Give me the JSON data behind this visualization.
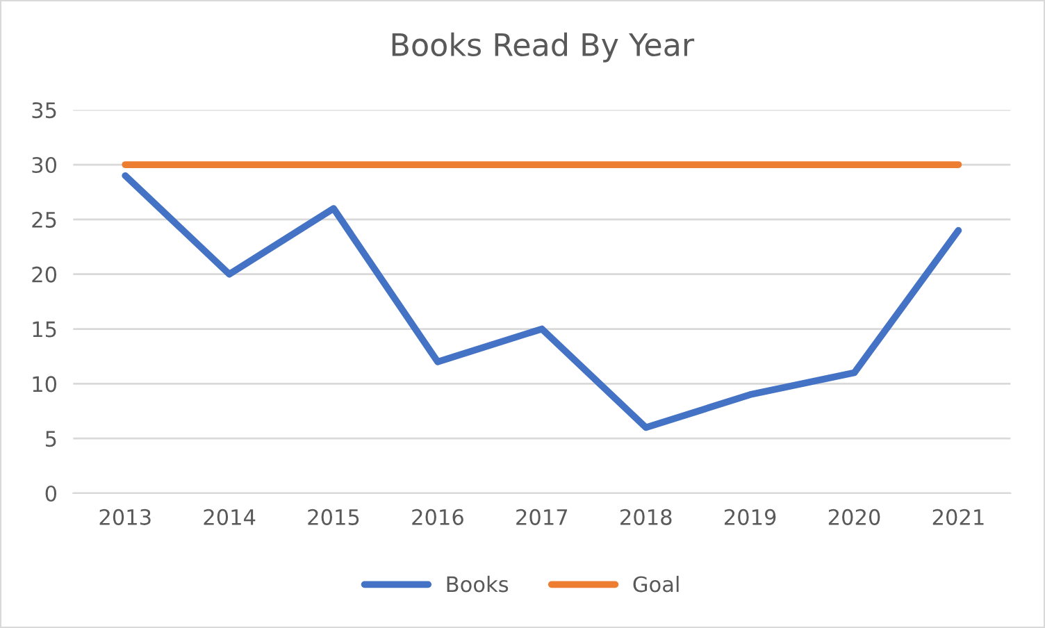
{
  "chart_data": {
    "type": "line",
    "title": "Books Read By Year",
    "categories": [
      "2013",
      "2014",
      "2015",
      "2016",
      "2017",
      "2018",
      "2019",
      "2020",
      "2021"
    ],
    "series": [
      {
        "name": "Books",
        "color": "#4472c4",
        "values": [
          29,
          20,
          26,
          12,
          15,
          6,
          9,
          11,
          24
        ]
      },
      {
        "name": "Goal",
        "color": "#ed7d31",
        "values": [
          30,
          30,
          30,
          30,
          30,
          30,
          30,
          30,
          30
        ]
      }
    ],
    "ylim": [
      0,
      35
    ],
    "yticks": [
      0,
      5,
      10,
      15,
      20,
      25,
      30,
      35
    ],
    "grid": "y",
    "legend": "bottom",
    "marker": "none",
    "line_style": "solid"
  }
}
